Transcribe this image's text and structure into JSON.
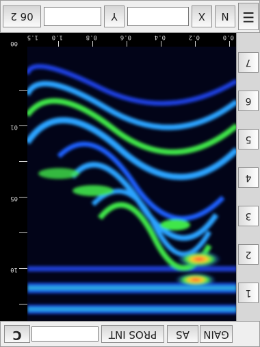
{
  "top_bar": {
    "c_button": "C",
    "gain_button": "GAIN",
    "as_button": "AS",
    "pros_button": "PROS INT"
  },
  "depth_labels": [
    "00",
    "01",
    "05",
    "10"
  ],
  "position_labels": [
    "0.0",
    "0.2",
    "0.4",
    "0.6",
    "0.8",
    "1.0",
    "1.5"
  ],
  "side_buttons": [
    "1",
    "2",
    "3",
    "4",
    "5",
    "6",
    "7"
  ],
  "bottom_bar": {
    "value_field": "06 2",
    "y_label": "Y",
    "x_label": "X",
    "n_label": "N"
  },
  "menu_icon": "menu-icon",
  "colors": {
    "background": "#000000",
    "panel": "#efefef",
    "radar_high": "#ff3a3a",
    "radar_mid": "#39e03a",
    "radar_low": "#1a4dff"
  }
}
